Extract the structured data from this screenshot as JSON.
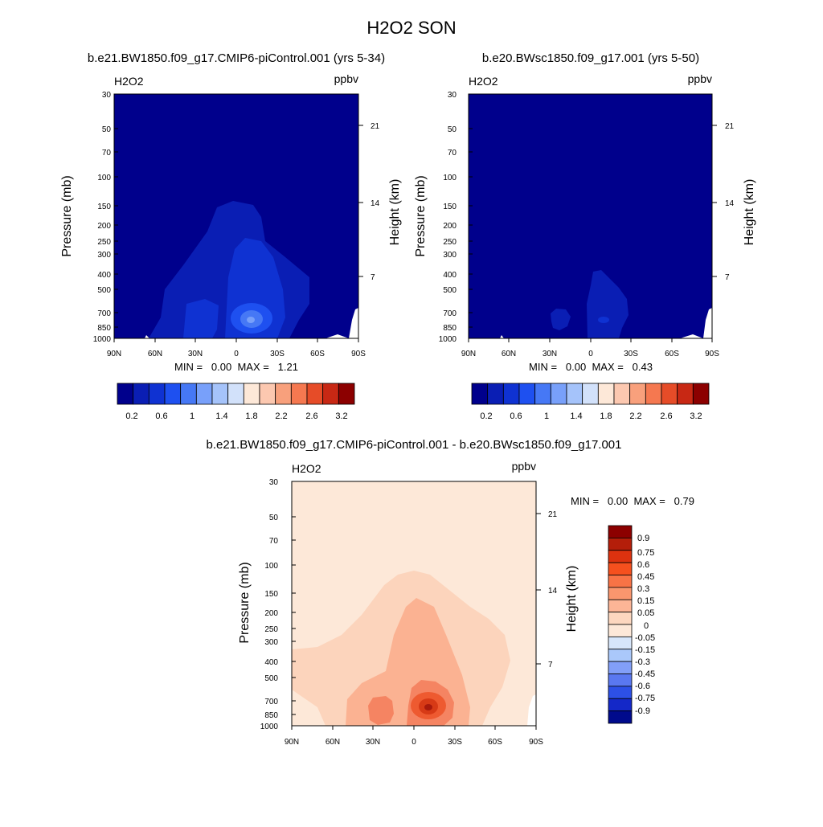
{
  "figure_title": "H2O2 SON",
  "panels": [
    {
      "title": "b.e21.BW1850.f09_g17.CMIP6-piControl.001 (yrs 5-34)",
      "var_label": "H2O2",
      "units_label": "ppbv",
      "y_left_title": "Pressure (mb)",
      "y_right_title": "Height (km)",
      "y_left_ticks": [
        "30",
        "50",
        "70",
        "100",
        "150",
        "200",
        "250",
        "300",
        "400",
        "500",
        "700",
        "850",
        "1000"
      ],
      "y_right_ticks": [
        "21",
        "14",
        "7"
      ],
      "x_ticks": [
        "90N",
        "60N",
        "30N",
        "0",
        "30S",
        "60S",
        "90S"
      ],
      "stats": "MIN =   0.00  MAX =   1.21",
      "colorbar_labels": [
        "0.2",
        "0.6",
        "1",
        "1.4",
        "1.8",
        "2.2",
        "2.6",
        "3.2"
      ]
    },
    {
      "title": "b.e20.BWsc1850.f09_g17.001 (yrs 5-50)",
      "var_label": "H2O2",
      "units_label": "ppbv",
      "y_left_title": "Pressure (mb)",
      "y_right_title": "Height (km)",
      "y_left_ticks": [
        "30",
        "50",
        "70",
        "100",
        "150",
        "200",
        "250",
        "300",
        "400",
        "500",
        "700",
        "850",
        "1000"
      ],
      "y_right_ticks": [
        "21",
        "14",
        "7"
      ],
      "x_ticks": [
        "90N",
        "60N",
        "30N",
        "0",
        "30S",
        "60S",
        "90S"
      ],
      "stats": "MIN =   0.00  MAX =   0.43",
      "colorbar_labels": [
        "0.2",
        "0.6",
        "1",
        "1.4",
        "1.8",
        "2.2",
        "2.6",
        "3.2"
      ]
    },
    {
      "title": "b.e21.BW1850.f09_g17.CMIP6-piControl.001 - b.e20.BWsc1850.f09_g17.001",
      "var_label": "H2O2",
      "units_label": "ppbv",
      "y_left_title": "Pressure (mb)",
      "y_right_title": "Height (km)",
      "y_left_ticks": [
        "30",
        "50",
        "70",
        "100",
        "150",
        "200",
        "250",
        "300",
        "400",
        "500",
        "700",
        "850",
        "1000"
      ],
      "y_right_ticks": [
        "21",
        "14",
        "7"
      ],
      "x_ticks": [
        "90N",
        "60N",
        "30N",
        "0",
        "30S",
        "60S",
        "90S"
      ],
      "stats": "MIN =   0.00  MAX =   0.79",
      "colorbar_labels": [
        "0.9",
        "0.75",
        "0.6",
        "0.45",
        "0.3",
        "0.15",
        "0.05",
        "0",
        "-0.05",
        "-0.15",
        "-0.3",
        "-0.45",
        "-0.6",
        "-0.75",
        "-0.9"
      ]
    }
  ],
  "chart_data": [
    {
      "type": "heatmap",
      "title": "b.e21.BW1850.f09_g17.CMIP6-piControl.001 (yrs 5-34)",
      "variable": "H2O2",
      "units": "ppbv",
      "xlabel": "",
      "ylabel": "Pressure (mb)",
      "ylabel_right": "Height (km)",
      "x_range": [
        90,
        -90
      ],
      "y_range_mb": [
        1000,
        30
      ],
      "y_scale": "log",
      "min": 0.0,
      "max": 1.21,
      "colorbar": {
        "orientation": "horizontal",
        "labels": [
          0.2,
          0.6,
          1,
          1.4,
          1.8,
          2.2,
          2.6,
          3.2
        ],
        "colors": [
          "#00008c",
          "#0a1eb4",
          "#0f32d2",
          "#1e50f0",
          "#4678f5",
          "#78a0fa",
          "#a5c3fa",
          "#d2e1fa",
          "#fde8d8",
          "#fcc8b0",
          "#f8a07c",
          "#f57850",
          "#e64c28",
          "#c82814",
          "#8c0000"
        ]
      },
      "contours": [
        {
          "level": 0.2,
          "lat": [
            -75,
            60
          ],
          "p": [
            150,
            1000
          ]
        },
        {
          "level": 0.6,
          "lat": [
            -35,
            20
          ],
          "p": [
            250,
            1000
          ]
        },
        {
          "level": 1.0,
          "lat": [
            -20,
            0
          ],
          "p": [
            600,
            950
          ]
        }
      ]
    },
    {
      "type": "heatmap",
      "title": "b.e20.BWsc1850.f09_g17.001 (yrs 5-50)",
      "variable": "H2O2",
      "units": "ppbv",
      "xlabel": "",
      "ylabel": "Pressure (mb)",
      "ylabel_right": "Height (km)",
      "x_range": [
        90,
        -90
      ],
      "y_range_mb": [
        1000,
        30
      ],
      "y_scale": "log",
      "min": 0.0,
      "max": 0.43,
      "colorbar": {
        "orientation": "horizontal",
        "labels": [
          0.2,
          0.6,
          1,
          1.4,
          1.8,
          2.2,
          2.6,
          3.2
        ],
        "colors": [
          "#00008c",
          "#0a1eb4",
          "#0f32d2",
          "#1e50f0",
          "#4678f5",
          "#78a0fa",
          "#a5c3fa",
          "#d2e1fa",
          "#fde8d8",
          "#fcc8b0",
          "#f8a07c",
          "#f57850",
          "#e64c28",
          "#c82814",
          "#8c0000"
        ]
      },
      "contours": [
        {
          "level": 0.2,
          "lat": [
            -30,
            5
          ],
          "p": [
            400,
            1000
          ]
        },
        {
          "level": 0.2,
          "lat": [
            20,
            35
          ],
          "p": [
            700,
            900
          ]
        }
      ]
    },
    {
      "type": "heatmap",
      "title": "b.e21.BW1850.f09_g17.CMIP6-piControl.001 - b.e20.BWsc1850.f09_g17.001",
      "variable": "H2O2",
      "units": "ppbv",
      "xlabel": "",
      "ylabel": "Pressure (mb)",
      "ylabel_right": "Height (km)",
      "x_range": [
        90,
        -90
      ],
      "y_range_mb": [
        1000,
        30
      ],
      "y_scale": "log",
      "min": 0.0,
      "max": 0.79,
      "colorbar": {
        "orientation": "vertical",
        "labels": [
          0.9,
          0.75,
          0.6,
          0.45,
          0.3,
          0.15,
          0.05,
          0,
          -0.05,
          -0.15,
          -0.3,
          -0.45,
          -0.6,
          -0.75,
          -0.9
        ],
        "colors": [
          "#8c0000",
          "#b41e0a",
          "#dc320f",
          "#f5501e",
          "#f87346",
          "#fa966e",
          "#fcb596",
          "#fdd7bf",
          "#fde8d8",
          "#d7e6fa",
          "#aac8fa",
          "#829ff8",
          "#5a78f0",
          "#2d50e6",
          "#1428c8",
          "#000a8c"
        ]
      },
      "contours": [
        {
          "level": 0.05,
          "lat": [
            -90,
            90
          ],
          "p": [
            110,
            1000
          ]
        },
        {
          "level": 0.15,
          "lat": [
            -55,
            55
          ],
          "p": [
            180,
            1000
          ]
        },
        {
          "level": 0.3,
          "lat": [
            -40,
            50
          ],
          "p": [
            550,
            1000
          ]
        },
        {
          "level": 0.45,
          "lat": [
            -25,
            5
          ],
          "p": [
            620,
            900
          ]
        },
        {
          "level": 0.6,
          "lat": [
            -20,
            0
          ],
          "p": [
            680,
            880
          ]
        }
      ]
    }
  ]
}
